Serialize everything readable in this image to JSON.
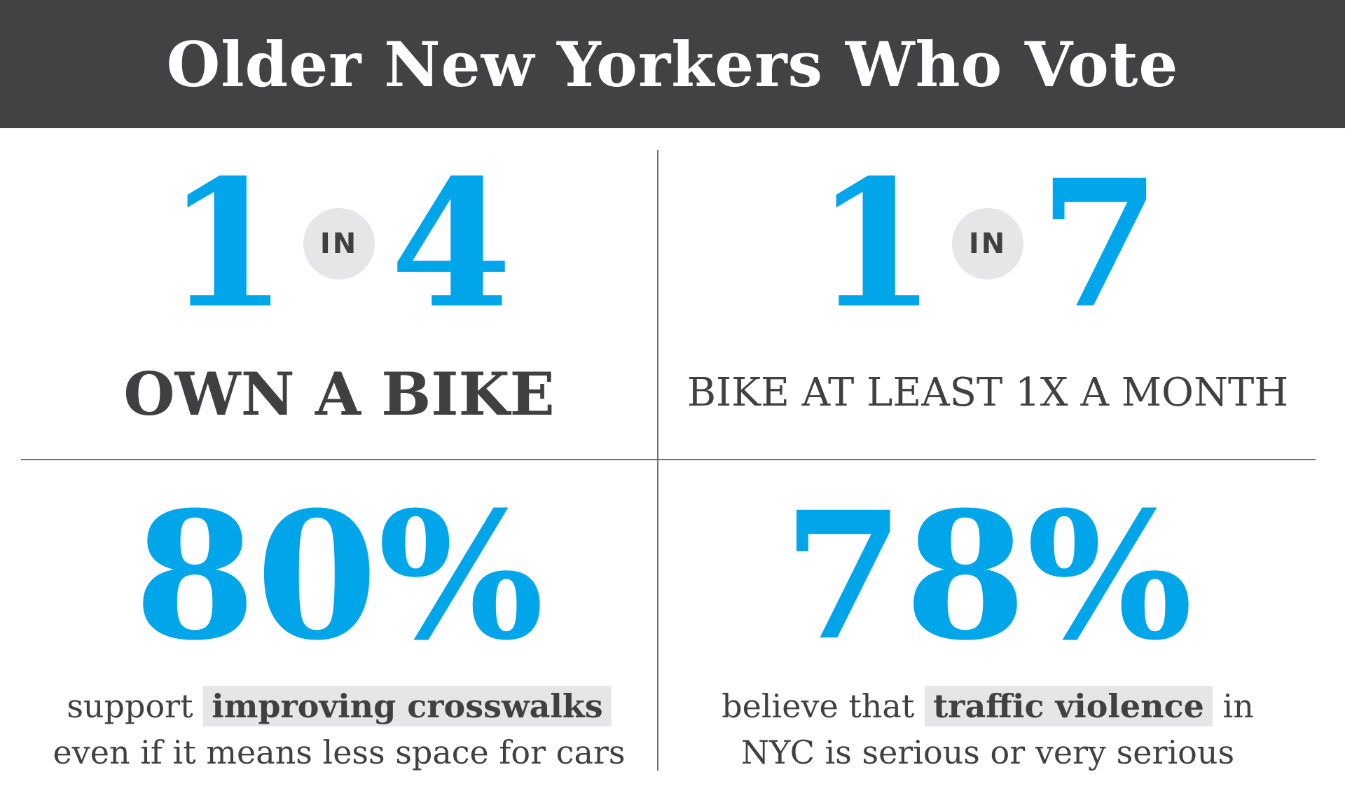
{
  "header": {
    "title": "Older New Yorkers Who Vote"
  },
  "stats": [
    {
      "numerator": "1",
      "connector": "IN",
      "denominator": "4",
      "caption": "OWN A BIKE"
    },
    {
      "numerator": "1",
      "connector": "IN",
      "denominator": "7",
      "caption": "BIKE AT LEAST 1X A MONTH"
    },
    {
      "value": "80%",
      "text_before": "support",
      "highlight": "improving crosswalks",
      "text_after": "",
      "line2": "even if it means less space for cars"
    },
    {
      "value": "78%",
      "text_before": "believe that",
      "highlight": "traffic violence",
      "text_after": "in",
      "line2": "NYC is serious or very serious"
    }
  ],
  "colors": {
    "accent": "#00a6e9",
    "header_bg": "#424244",
    "text": "#404042",
    "badge_bg": "#e6e6e8"
  }
}
